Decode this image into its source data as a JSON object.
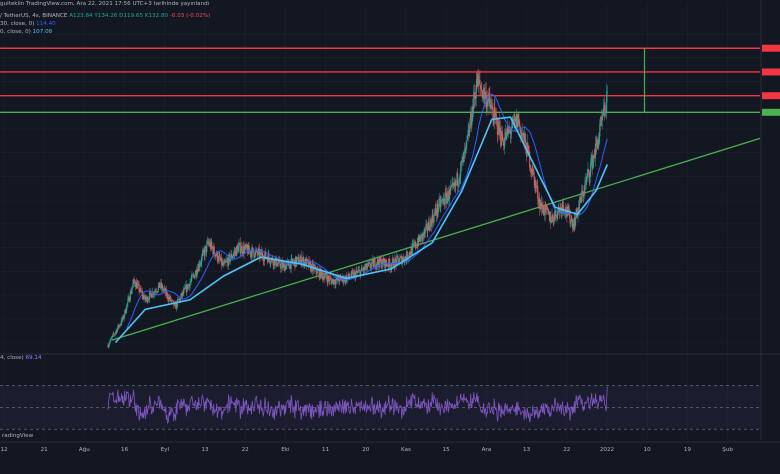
{
  "header": {
    "snapshot_text": "gulteklin TradingView.com, Ara 22, 2021 17:56 UTC+3 tarihinde yayınlandı",
    "symbol_text": "/ TetherUS, 4s, BINANCE",
    "ohlc": {
      "o": "A123.84",
      "h": "Y134.26",
      "l": "D119.65",
      "c": "K132.80",
      "chg": "-0.03 (-0.02%)"
    },
    "sma_label": "30, close, 0)",
    "sma_value": "114.40",
    "ema_label": "0, close, 0)",
    "ema_value": "107.08"
  },
  "rsi_header": {
    "label": "4, close)",
    "value": "69.14"
  },
  "footer": {
    "logo_text": "radingView"
  },
  "colors": {
    "background": "#131722",
    "grid": "#1e2230",
    "candle_up": "#26a69a",
    "candle_down": "#ef5350",
    "sma": "#2962ff",
    "ema": "#4fc3f7",
    "resistance": "#f23645",
    "support": "#4caf50",
    "trendline": "#4caf50",
    "rsi": "#7e57c2"
  },
  "chart_data": {
    "type": "candlestick",
    "x_ticks": [
      "12",
      "21",
      "Ağu",
      "16",
      "Eyl",
      "13",
      "22",
      "Eki",
      "11",
      "20",
      "Kas",
      "15",
      "Ara",
      "13",
      "22",
      "2022",
      "10",
      "19",
      "Şub"
    ],
    "price_range": [
      26,
      160
    ],
    "horizontal_levels": [
      {
        "price": 154,
        "color": "#f23645"
      },
      {
        "price": 144,
        "color": "#f23645"
      },
      {
        "price": 134,
        "color": "#f23645"
      },
      {
        "price": 127,
        "color": "#4caf50"
      }
    ],
    "target_box": {
      "start_x": "2022-01-01",
      "top": 154,
      "bottom": 127
    },
    "trendline": {
      "points": [
        [
          "2021-08-11",
          31
        ],
        [
          "2022-02-01",
          116
        ]
      ]
    },
    "close_segments": [
      [
        "2021-08-10",
        29
      ],
      [
        "2021-08-14",
        40
      ],
      [
        "2021-08-17",
        56
      ],
      [
        "2021-08-20",
        48
      ],
      [
        "2021-08-24",
        54
      ],
      [
        "2021-08-28",
        45
      ],
      [
        "2021-09-02",
        58
      ],
      [
        "2021-09-06",
        72
      ],
      [
        "2021-09-10",
        62
      ],
      [
        "2021-09-14",
        70
      ],
      [
        "2021-09-18",
        68
      ],
      [
        "2021-09-22",
        66
      ],
      [
        "2021-09-26",
        62
      ],
      [
        "2021-10-01",
        65
      ],
      [
        "2021-10-05",
        60
      ],
      [
        "2021-10-09",
        56
      ],
      [
        "2021-10-13",
        57
      ],
      [
        "2021-10-17",
        60
      ],
      [
        "2021-10-21",
        64
      ],
      [
        "2021-10-25",
        63
      ],
      [
        "2021-10-29",
        66
      ],
      [
        "2021-11-03",
        76
      ],
      [
        "2021-11-07",
        88
      ],
      [
        "2021-11-11",
        95
      ],
      [
        "2021-11-14",
        110
      ],
      [
        "2021-11-17",
        140
      ],
      [
        "2021-11-20",
        132
      ],
      [
        "2021-11-24",
        115
      ],
      [
        "2021-11-28",
        124
      ],
      [
        "2021-12-01",
        108
      ],
      [
        "2021-12-04",
        88
      ],
      [
        "2021-12-07",
        82
      ],
      [
        "2021-12-10",
        88
      ],
      [
        "2021-12-13",
        80
      ],
      [
        "2021-12-16",
        96
      ],
      [
        "2021-12-19",
        112
      ],
      [
        "2021-12-22",
        132
      ]
    ],
    "ema_series": [
      [
        "2021-08-12",
        30
      ],
      [
        "2021-08-20",
        44
      ],
      [
        "2021-09-01",
        48
      ],
      [
        "2021-09-10",
        58
      ],
      [
        "2021-09-20",
        66
      ],
      [
        "2021-10-01",
        63
      ],
      [
        "2021-10-13",
        57
      ],
      [
        "2021-10-25",
        61
      ],
      [
        "2021-11-05",
        72
      ],
      [
        "2021-11-13",
        94
      ],
      [
        "2021-11-21",
        124
      ],
      [
        "2021-11-26",
        125
      ],
      [
        "2021-12-02",
        106
      ],
      [
        "2021-12-08",
        87
      ],
      [
        "2021-12-14",
        84
      ],
      [
        "2021-12-19",
        94
      ],
      [
        "2021-12-22",
        105
      ]
    ],
    "rsi": {
      "ylim": [
        20,
        90
      ],
      "levels": [
        70,
        50,
        30
      ],
      "last": 69.14
    }
  }
}
